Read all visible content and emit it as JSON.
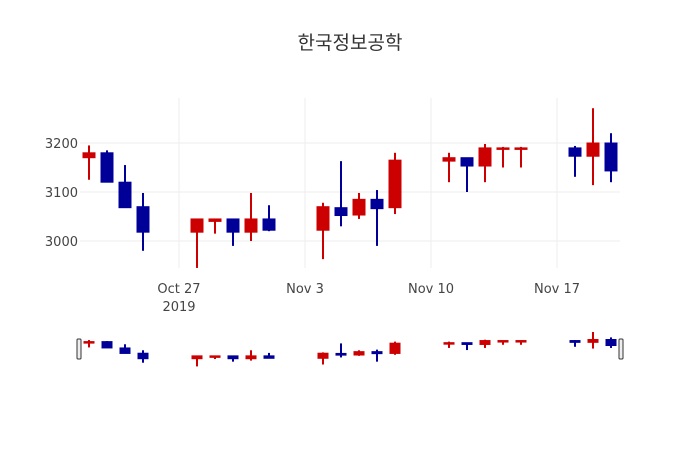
{
  "chart": {
    "title": "한국정보공학"
  },
  "chart_data": {
    "type": "candlestick",
    "title": "한국정보공학",
    "xlabel": "",
    "ylabel": "",
    "ylim": [
      2930,
      3290
    ],
    "yticks": [
      3000,
      3100,
      3200
    ],
    "xticks": [
      {
        "date": "2019-10-27",
        "label": "Oct 27",
        "sublabel": "2019"
      },
      {
        "date": "2019-11-03",
        "label": "Nov 3",
        "sublabel": ""
      },
      {
        "date": "2019-11-10",
        "label": "Nov 10",
        "sublabel": ""
      },
      {
        "date": "2019-11-17",
        "label": "Nov 17",
        "sublabel": ""
      }
    ],
    "xrange": [
      "2019-10-21.5",
      "2019-11-20.5"
    ],
    "increasing_color": "#cc0000",
    "decreasing_color": "#000099",
    "grid": true,
    "rangeslider": true,
    "legend": false,
    "series": [
      {
        "date": "2019-10-22",
        "open": 3170,
        "high": 3195,
        "low": 3125,
        "close": 3180
      },
      {
        "date": "2019-10-23",
        "open": 3180,
        "high": 3185,
        "low": 3120,
        "close": 3120
      },
      {
        "date": "2019-10-24",
        "open": 3120,
        "high": 3155,
        "low": 3068,
        "close": 3068
      },
      {
        "date": "2019-10-25",
        "open": 3070,
        "high": 3098,
        "low": 2980,
        "close": 3018
      },
      {
        "date": "2019-10-28",
        "open": 3018,
        "high": 3045,
        "low": 2945,
        "close": 3045
      },
      {
        "date": "2019-10-29",
        "open": 3040,
        "high": 3045,
        "low": 3015,
        "close": 3045
      },
      {
        "date": "2019-10-30",
        "open": 3045,
        "high": 3045,
        "low": 2990,
        "close": 3018
      },
      {
        "date": "2019-10-31",
        "open": 3018,
        "high": 3098,
        "low": 3000,
        "close": 3045
      },
      {
        "date": "2019-11-01",
        "open": 3045,
        "high": 3073,
        "low": 3020,
        "close": 3022
      },
      {
        "date": "2019-11-04",
        "open": 3022,
        "high": 3078,
        "low": 2963,
        "close": 3070
      },
      {
        "date": "2019-11-05",
        "open": 3068,
        "high": 3163,
        "low": 3030,
        "close": 3052
      },
      {
        "date": "2019-11-06",
        "open": 3053,
        "high": 3098,
        "low": 3045,
        "close": 3085
      },
      {
        "date": "2019-11-07",
        "open": 3085,
        "high": 3104,
        "low": 2990,
        "close": 3066
      },
      {
        "date": "2019-11-08",
        "open": 3068,
        "high": 3180,
        "low": 3055,
        "close": 3165
      },
      {
        "date": "2019-11-11",
        "open": 3163,
        "high": 3180,
        "low": 3120,
        "close": 3170
      },
      {
        "date": "2019-11-12",
        "open": 3170,
        "high": 3170,
        "low": 3100,
        "close": 3153
      },
      {
        "date": "2019-11-13",
        "open": 3153,
        "high": 3198,
        "low": 3120,
        "close": 3190
      },
      {
        "date": "2019-11-14",
        "open": 3188,
        "high": 3192,
        "low": 3150,
        "close": 3190
      },
      {
        "date": "2019-11-15",
        "open": 3188,
        "high": 3192,
        "low": 3150,
        "close": 3190
      },
      {
        "date": "2019-11-18",
        "open": 3190,
        "high": 3194,
        "low": 3131,
        "close": 3173
      },
      {
        "date": "2019-11-19",
        "open": 3173,
        "high": 3271,
        "low": 3114,
        "close": 3200
      },
      {
        "date": "2019-11-20",
        "open": 3200,
        "high": 3220,
        "low": 3120,
        "close": 3143
      }
    ]
  }
}
